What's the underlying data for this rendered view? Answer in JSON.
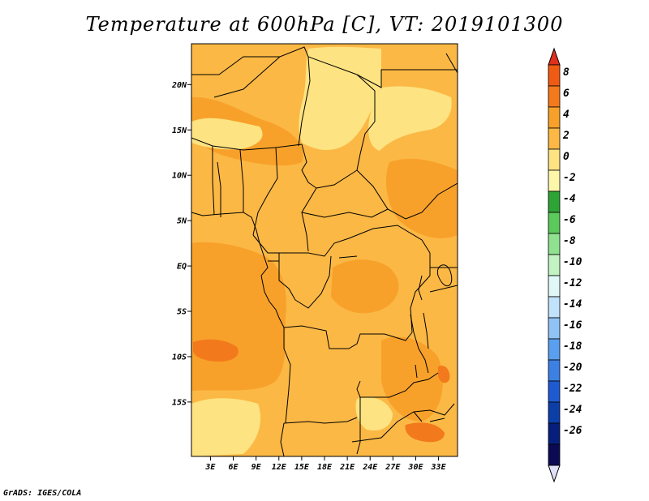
{
  "title": "Temperature at 600hPa [C], VT: 2019101300",
  "credit": "GrADS: IGES/COLA",
  "map": {
    "lat_range": [
      -21,
      24.5
    ],
    "lon_range": [
      0.5,
      35.5
    ],
    "lat_ticks": [
      {
        "value": 20,
        "label": "20N"
      },
      {
        "value": 15,
        "label": "15N"
      },
      {
        "value": 10,
        "label": "10N"
      },
      {
        "value": 5,
        "label": "5N"
      },
      {
        "value": 0,
        "label": "EQ"
      },
      {
        "value": -5,
        "label": "5S"
      },
      {
        "value": -10,
        "label": "10S"
      },
      {
        "value": -15,
        "label": "15S"
      }
    ],
    "lon_ticks": [
      {
        "value": 3,
        "label": "3E"
      },
      {
        "value": 6,
        "label": "6E"
      },
      {
        "value": 9,
        "label": "9E"
      },
      {
        "value": 12,
        "label": "12E"
      },
      {
        "value": 15,
        "label": "15E"
      },
      {
        "value": 18,
        "label": "18E"
      },
      {
        "value": 21,
        "label": "21E"
      },
      {
        "value": 24,
        "label": "24E"
      },
      {
        "value": 27,
        "label": "27E"
      },
      {
        "value": 30,
        "label": "30E"
      },
      {
        "value": 33,
        "label": "33E"
      }
    ],
    "field_colors": {
      "band_0_2": "#fbb845",
      "band_2_4": "#f8a12a",
      "band_4_6": "#f37a1c",
      "band_minus2_0": "#fde381"
    }
  },
  "colorbar": {
    "labels": [
      "8",
      "6",
      "4",
      "2",
      "0",
      "-2",
      "-4",
      "-6",
      "-8",
      "-10",
      "-12",
      "-14",
      "-16",
      "-18",
      "-20",
      "-22",
      "-24",
      "-26"
    ],
    "top_triangle_color": "#e0301b",
    "bottom_triangle_color": "#e0e0f8",
    "segment_colors": [
      "#e2351c",
      "#f05b13",
      "#f37a1c",
      "#f8a12a",
      "#fbb845",
      "#fde381",
      "#fdf7aa",
      "#2ea336",
      "#5bc95b",
      "#90e290",
      "#c3f3c3",
      "#e0f8f8",
      "#c0e2fb",
      "#8fc3f5",
      "#5a9fef",
      "#3c80e4",
      "#1e5bd2",
      "#0c3ea8",
      "#061f7c",
      "#0b0a52"
    ]
  }
}
